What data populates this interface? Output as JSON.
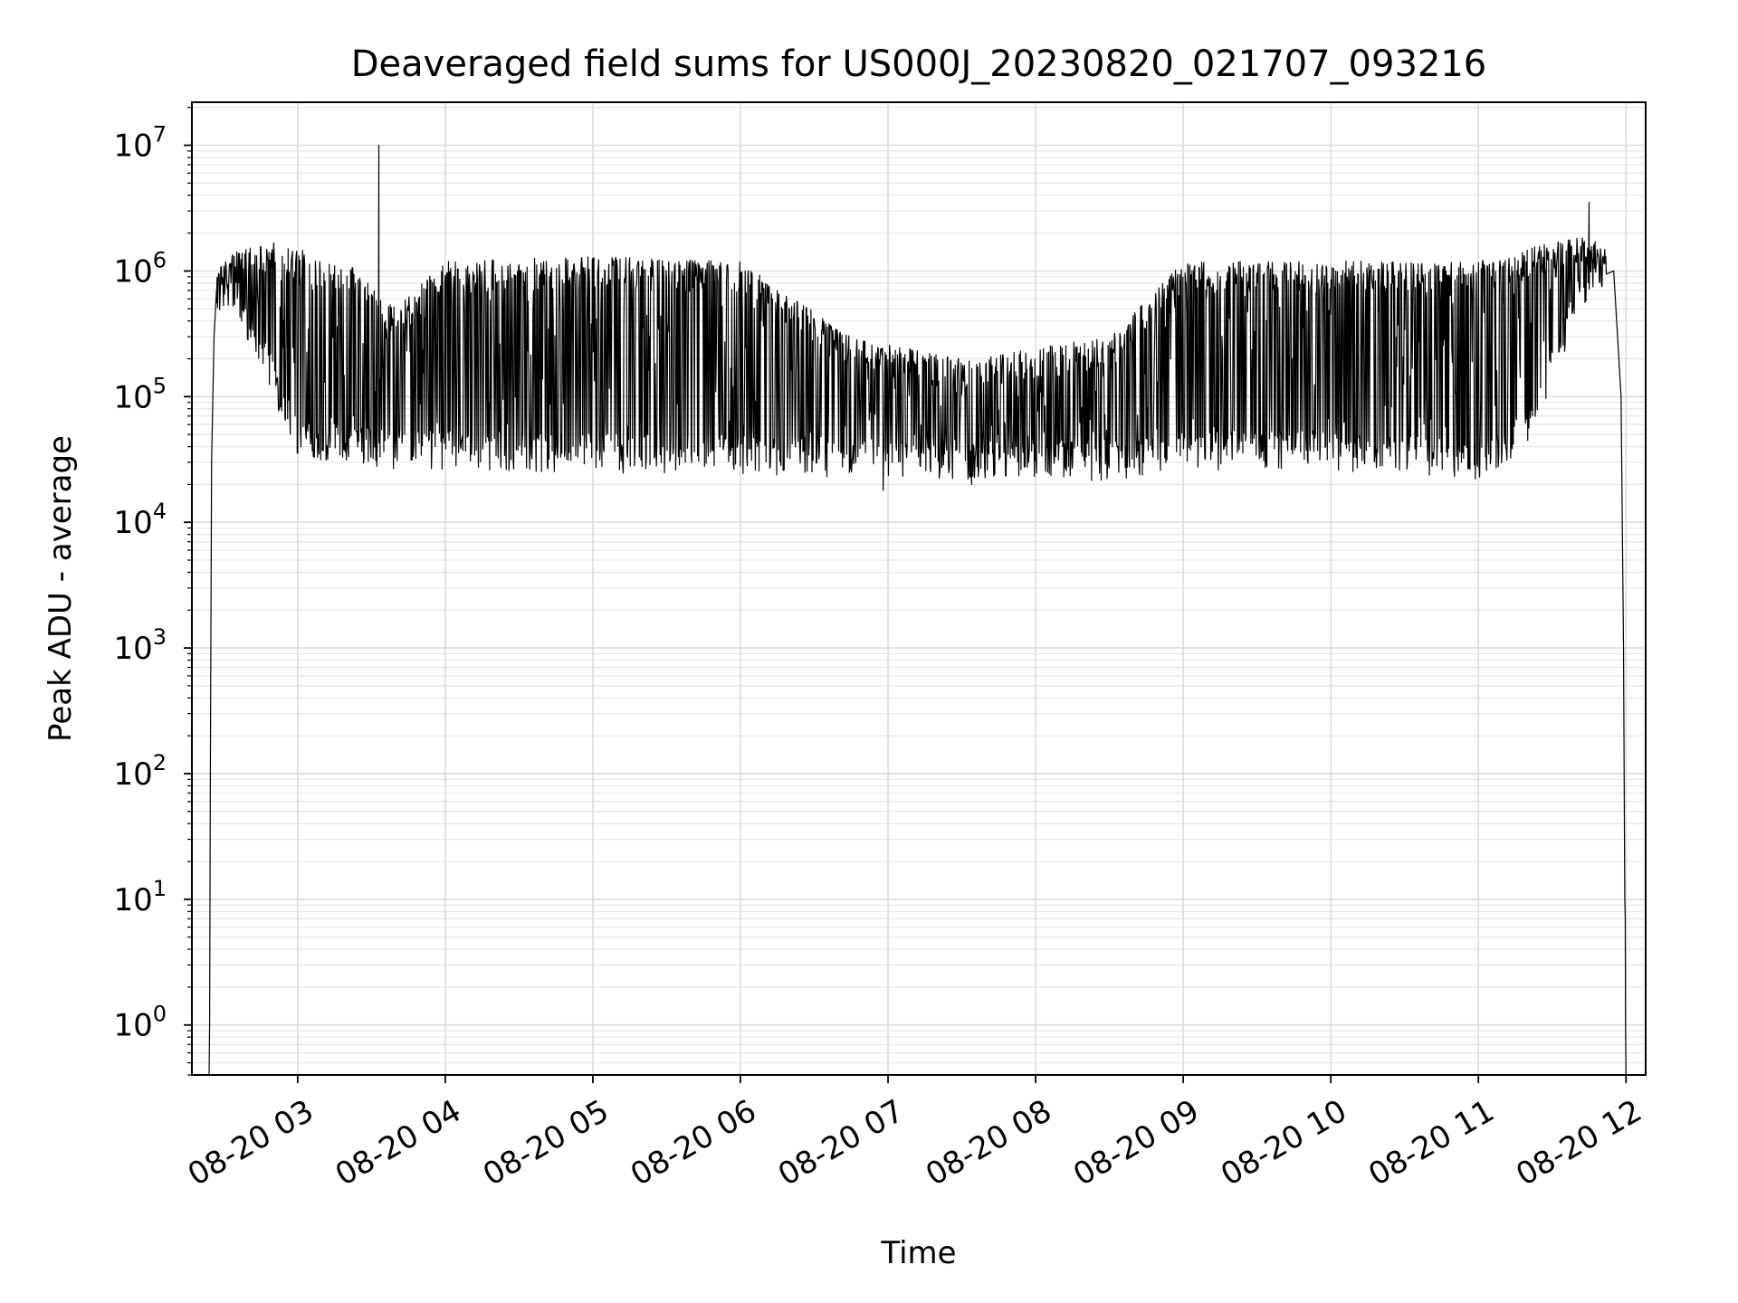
{
  "chart_data": {
    "type": "line",
    "title": "Deaveraged field sums for US000J_20230820_021707_093216",
    "xlabel": "Time",
    "ylabel": "Peak ADU - average",
    "yscale": "log",
    "ylim": [
      0.4,
      22000000
    ],
    "xlim": [
      "08-20 02:17",
      "08-20 12:08"
    ],
    "grid": true,
    "x_ticks": [
      {
        "t": "08-20 03:00",
        "label": "08-20 03"
      },
      {
        "t": "08-20 04:00",
        "label": "08-20 04"
      },
      {
        "t": "08-20 05:00",
        "label": "08-20 05"
      },
      {
        "t": "08-20 06:00",
        "label": "08-20 06"
      },
      {
        "t": "08-20 07:00",
        "label": "08-20 07"
      },
      {
        "t": "08-20 08:00",
        "label": "08-20 08"
      },
      {
        "t": "08-20 09:00",
        "label": "08-20 09"
      },
      {
        "t": "08-20 10:00",
        "label": "08-20 10"
      },
      {
        "t": "08-20 11:00",
        "label": "08-20 11"
      },
      {
        "t": "08-20 12:00",
        "label": "08-20 12"
      }
    ],
    "y_ticks": [
      {
        "value": 1,
        "base": "10",
        "exp": "0"
      },
      {
        "value": 10,
        "base": "10",
        "exp": "1"
      },
      {
        "value": 100,
        "base": "10",
        "exp": "2"
      },
      {
        "value": 1000,
        "base": "10",
        "exp": "3"
      },
      {
        "value": 10000,
        "base": "10",
        "exp": "4"
      },
      {
        "value": 100000,
        "base": "10",
        "exp": "5"
      },
      {
        "value": 1000000,
        "base": "10",
        "exp": "6"
      },
      {
        "value": 10000000,
        "base": "10",
        "exp": "7"
      }
    ],
    "series": [
      {
        "color": "#000000",
        "envelope": [
          {
            "t": "08-20 02:27",
            "upper": 1000000,
            "baseline": 700000
          },
          {
            "t": "08-20 02:35",
            "upper": 1500000,
            "baseline": 700000
          },
          {
            "t": "08-20 02:50",
            "upper": 1700000,
            "baseline": 150000
          },
          {
            "t": "08-20 03:00",
            "upper": 1500000,
            "baseline": 50000
          },
          {
            "t": "08-20 03:20",
            "upper": 1200000,
            "baseline": 45000
          },
          {
            "t": "08-20 03:40",
            "upper": 500000,
            "baseline": 40000
          },
          {
            "t": "08-20 04:00",
            "upper": 1200000,
            "baseline": 40000
          },
          {
            "t": "08-20 05:00",
            "upper": 1300000,
            "baseline": 38000
          },
          {
            "t": "08-20 06:00",
            "upper": 1200000,
            "baseline": 37000
          },
          {
            "t": "08-20 06:45",
            "upper": 300000,
            "baseline": 35000
          },
          {
            "t": "08-20 07:30",
            "upper": 200000,
            "baseline": 34000
          },
          {
            "t": "08-20 08:30",
            "upper": 300000,
            "baseline": 33000
          },
          {
            "t": "08-20 09:00",
            "upper": 1200000,
            "baseline": 40000
          },
          {
            "t": "08-20 10:00",
            "upper": 1200000,
            "baseline": 40000
          },
          {
            "t": "08-20 11:00",
            "upper": 1200000,
            "baseline": 33000
          },
          {
            "t": "08-20 11:20",
            "upper": 1500000,
            "baseline": 60000
          },
          {
            "t": "08-20 11:40",
            "upper": 2000000,
            "baseline": 600000
          },
          {
            "t": "08-20 11:52",
            "upper": 1600000,
            "baseline": 1200000
          }
        ],
        "points": [
          {
            "t": "08-20 02:24",
            "y": 0.4
          },
          {
            "t": "08-20 02:24.2",
            "y": 1
          },
          {
            "t": "08-20 02:24.5",
            "y": 100
          },
          {
            "t": "08-20 02:25",
            "y": 30000
          },
          {
            "t": "08-20 02:26",
            "y": 300000
          },
          {
            "t": "08-20 02:27",
            "y": 700000
          },
          {
            "t": "08-20 03:33",
            "y": 10000000
          },
          {
            "t": "08-20 06:58",
            "y": 18000
          },
          {
            "t": "08-20 07:34",
            "y": 20000
          },
          {
            "t": "08-20 11:45",
            "y": 3500000
          },
          {
            "t": "08-20 11:55",
            "y": 1000000
          },
          {
            "t": "08-20 11:58",
            "y": 100000
          },
          {
            "t": "08-20 11:59",
            "y": 1000
          },
          {
            "t": "08-20 11:59.5",
            "y": 10
          },
          {
            "t": "08-20 11:59.7",
            "y": 7
          },
          {
            "t": "08-20 11:59.8",
            "y": 1
          },
          {
            "t": "08-20 12:00",
            "y": 0.4
          }
        ]
      }
    ]
  }
}
